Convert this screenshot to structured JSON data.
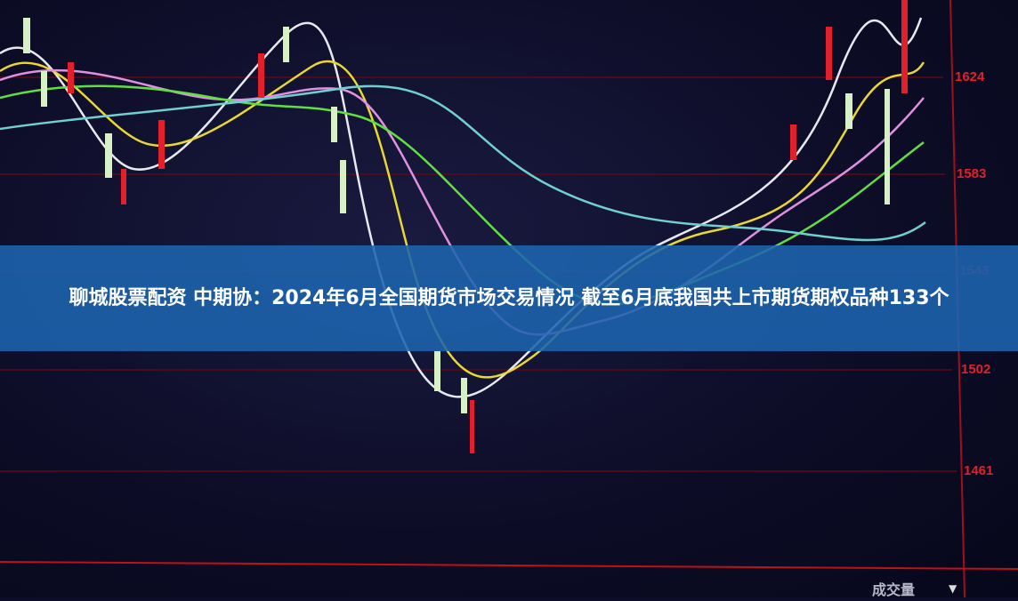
{
  "headline": "聊城股票配资 中期协：2024年6月全国期货市场交易情况 截至6月底我国共上市期货期权品种133个",
  "price_axis": {
    "ticks": [
      "1624",
      "1583",
      "1543",
      "1502",
      "1461"
    ],
    "color": "#e0202a"
  },
  "volume_label": "成交量",
  "volume_dropdown_icon": "triangle-down-icon",
  "colors": {
    "banner": "#1e64af",
    "background": "#0d0d2a",
    "up_candle": "#e0202a",
    "down_candle": "#d8f0c8"
  }
}
